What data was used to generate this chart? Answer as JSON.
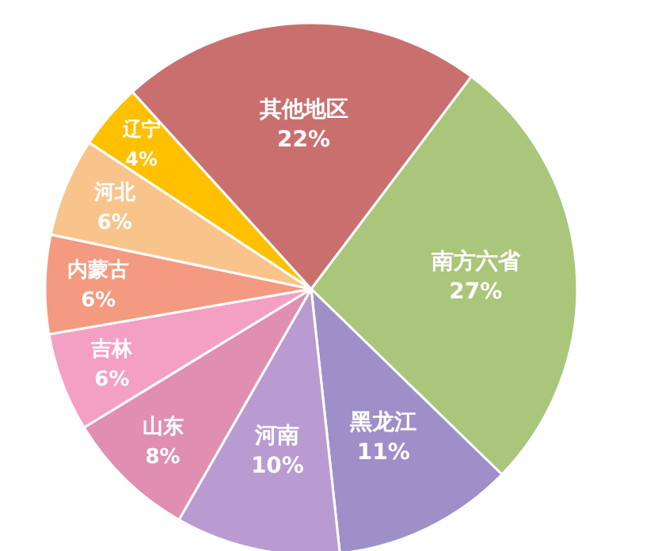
{
  "chart_data": {
    "type": "pie",
    "categories": [
      "南方六省",
      "黑龙江",
      "河南",
      "山东",
      "吉林",
      "内蒙古",
      "河北",
      "辽宁",
      "其他地区"
    ],
    "values": [
      27,
      11,
      10,
      8,
      6,
      6,
      6,
      4,
      22
    ],
    "colors": [
      "#a9c67a",
      "#9e8fc9",
      "#b99bd1",
      "#e08fb0",
      "#f3a0c3",
      "#f39a80",
      "#f9c48c",
      "#ffc000",
      "#c9706f"
    ],
    "value_labels": [
      "27%",
      "11%",
      "10%",
      "8%",
      "6%",
      "6%",
      "6%",
      "4%",
      "22%"
    ]
  }
}
